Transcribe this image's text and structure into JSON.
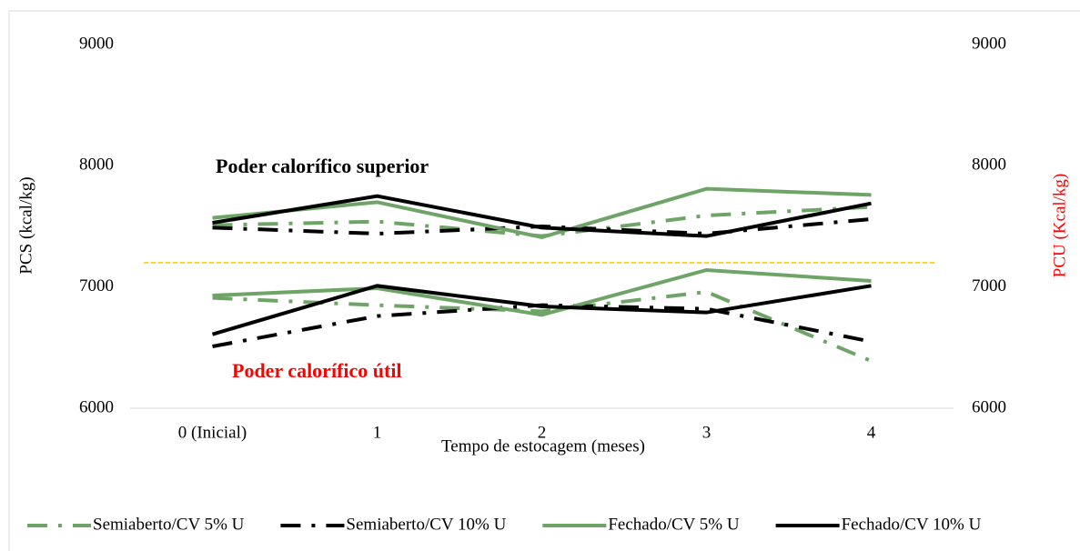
{
  "chart_data": {
    "type": "line",
    "xlabel": "Tempo de estocagem (meses)",
    "ylabel": "PCS (kcal/kg)",
    "y2label": "PCU (Kcal/kg)",
    "y2label_color": "#ff0000",
    "annotations": [
      {
        "text": "Poder calorífico superior",
        "color": "#000000"
      },
      {
        "text": "Poder calorífico útil",
        "color": "#ff0000"
      }
    ],
    "categories": [
      "0 (Inicial)",
      "1",
      "2",
      "3",
      "4"
    ],
    "ylim": [
      6000,
      9000
    ],
    "yticks": [
      6000,
      7000,
      8000,
      9000
    ],
    "y2lim": [
      6000,
      9000
    ],
    "y2ticks": [
      6000,
      7000,
      8000,
      9000
    ],
    "reference_line": {
      "value": 7200,
      "color": "#ffc000"
    },
    "grid": false,
    "legend": "bottom",
    "series": [
      {
        "name": "Semiaberto/CV 5% U",
        "color": "#6ea567",
        "style": "dashdot",
        "values": [
          7510,
          7540,
          7420,
          7590,
          7660
        ]
      },
      {
        "name": "Semiaberto/CV 10% U",
        "color": "#000000",
        "style": "dashdot",
        "values": [
          7490,
          7440,
          7500,
          7440,
          7560
        ]
      },
      {
        "name": "Fechado/CV 5% U",
        "color": "#6ea567",
        "style": "solid",
        "values": [
          7570,
          7700,
          7410,
          7810,
          7760
        ]
      },
      {
        "name": "Fechado/CV 10% U",
        "color": "#000000",
        "style": "solid",
        "values": [
          7530,
          7750,
          7490,
          7420,
          7690
        ]
      },
      {
        "name": "Semiaberto/CV 5% U",
        "color": "#6ea567",
        "style": "dashdot",
        "axis": "y2",
        "values": [
          6910,
          6850,
          6800,
          6960,
          6390
        ]
      },
      {
        "name": "Semiaberto/CV 10% U",
        "color": "#000000",
        "style": "dashdot",
        "axis": "y2",
        "values": [
          6510,
          6760,
          6850,
          6820,
          6550
        ]
      },
      {
        "name": "Fechado/CV 5% U",
        "color": "#6ea567",
        "style": "solid",
        "axis": "y2",
        "values": [
          6930,
          6990,
          6770,
          7140,
          7050
        ]
      },
      {
        "name": "Fechado/CV 10% U",
        "color": "#000000",
        "style": "solid",
        "axis": "y2",
        "values": [
          6610,
          7010,
          6840,
          6790,
          7010
        ]
      }
    ]
  }
}
